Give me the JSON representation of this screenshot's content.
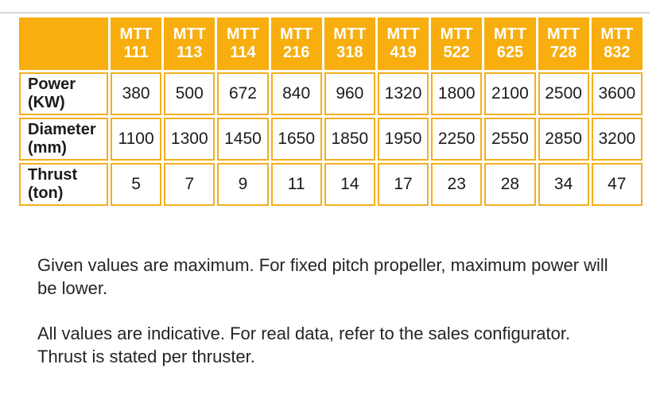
{
  "colors": {
    "header_fill": "#F7AE0E",
    "grid_border": "#F3AF1E",
    "header_text": "#FFFFFF",
    "body_text": "#1B1B1B",
    "note_text": "#252525",
    "top_line": "#D4D4D4"
  },
  "table": {
    "corner_label": "",
    "columns": [
      "MTT\n111",
      "MTT\n113",
      "MTT\n114",
      "MTT\n216",
      "MTT\n318",
      "MTT\n419",
      "MTT\n522",
      "MTT\n625",
      "MTT\n728",
      "MTT\n832"
    ],
    "rows": [
      {
        "label": "Power\n(KW)",
        "values": [
          "380",
          "500",
          "672",
          "840",
          "960",
          "1320",
          "1800",
          "2100",
          "2500",
          "3600"
        ]
      },
      {
        "label": "Diameter\n(mm)",
        "values": [
          "1100",
          "1300",
          "1450",
          "1650",
          "1850",
          "1950",
          "2250",
          "2550",
          "2850",
          "3200"
        ]
      },
      {
        "label": "Thrust\n(ton)",
        "values": [
          "5",
          "7",
          "9",
          "11",
          "14",
          "17",
          "23",
          "28",
          "34",
          "47"
        ]
      }
    ]
  },
  "notes": [
    "Given values are maximum. For fixed pitch propeller, maximum power will\nbe lower.",
    "All values are indicative. For real data, refer to the sales configurator.\nThrust is stated per thruster."
  ]
}
